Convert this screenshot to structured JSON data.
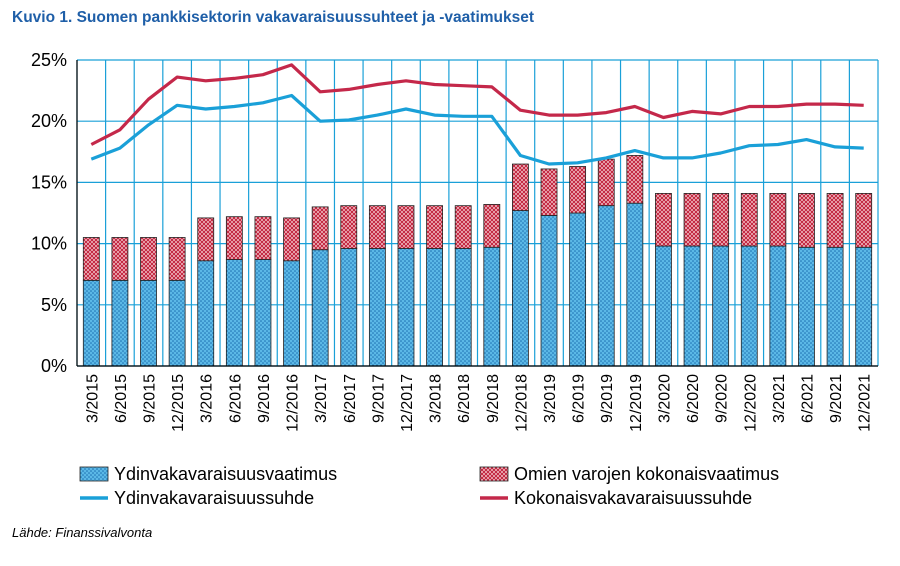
{
  "title": "Kuvio 1. Suomen pankkisektorin vakavaraisuussuhteet ja -vaatimukset",
  "source": "Lähde: Finanssivalvonta",
  "colors": {
    "core_req": "#5bb8e6",
    "core_req_pattern": "#1a6fb0",
    "own_funds": "#f2b8c0",
    "own_funds_pattern": "#c0203a",
    "core_ratio": "#1aa0d8",
    "total_ratio": "#c4284a",
    "grid": "#1aa0d8",
    "title": "#1f5fa8"
  },
  "chart_data": {
    "type": "bar",
    "categories": [
      "3/2015",
      "6/2015",
      "9/2015",
      "12/2015",
      "3/2016",
      "6/2016",
      "9/2016",
      "12/2016",
      "3/2017",
      "6/2017",
      "9/2017",
      "12/2017",
      "3/2018",
      "6/2018",
      "9/2018",
      "12/2018",
      "3/2019",
      "6/2019",
      "9/2019",
      "12/2019",
      "3/2020",
      "6/2020",
      "9/2020",
      "12/2020",
      "3/2021",
      "6/2021",
      "9/2021",
      "12/2021"
    ],
    "ylim": [
      0,
      25
    ],
    "yticks": [
      "0%",
      "5%",
      "10%",
      "15%",
      "20%",
      "25%"
    ],
    "grid": true,
    "legend_position": "bottom",
    "series": [
      {
        "name": "Ydinvakavaraisuusvaatimus",
        "kind": "stacked-bar",
        "values": [
          7.0,
          7.0,
          7.0,
          7.0,
          8.6,
          8.7,
          8.7,
          8.6,
          9.5,
          9.6,
          9.6,
          9.6,
          9.6,
          9.6,
          9.7,
          12.7,
          12.3,
          12.5,
          13.1,
          13.3,
          9.8,
          9.8,
          9.8,
          9.8,
          9.8,
          9.7,
          9.7,
          9.7
        ]
      },
      {
        "name": "Omien varojen kokonaisvaatimus",
        "kind": "stacked-bar",
        "values": [
          3.5,
          3.5,
          3.5,
          3.5,
          3.5,
          3.5,
          3.5,
          3.5,
          3.5,
          3.5,
          3.5,
          3.5,
          3.5,
          3.5,
          3.5,
          3.8,
          3.8,
          3.8,
          3.8,
          3.9,
          4.3,
          4.3,
          4.3,
          4.3,
          4.3,
          4.4,
          4.4,
          4.4
        ]
      },
      {
        "name": "Ydinvakavaraisuussuhde",
        "kind": "line",
        "values": [
          16.9,
          17.8,
          19.7,
          21.3,
          21.0,
          21.2,
          21.5,
          22.1,
          20.0,
          20.1,
          20.5,
          21.0,
          20.5,
          20.4,
          20.4,
          17.2,
          16.5,
          16.6,
          17.0,
          17.6,
          17.0,
          17.0,
          17.4,
          18.0,
          18.1,
          18.5,
          17.9,
          17.8
        ]
      },
      {
        "name": "Kokonaisvakavaraisuussuhde",
        "kind": "line",
        "values": [
          18.1,
          19.3,
          21.8,
          23.6,
          23.3,
          23.5,
          23.8,
          24.6,
          22.4,
          22.6,
          23.0,
          23.3,
          23.0,
          22.9,
          22.8,
          20.9,
          20.5,
          20.5,
          20.7,
          21.2,
          20.3,
          20.8,
          20.6,
          21.2,
          21.2,
          21.4,
          21.4,
          21.3
        ]
      }
    ]
  }
}
